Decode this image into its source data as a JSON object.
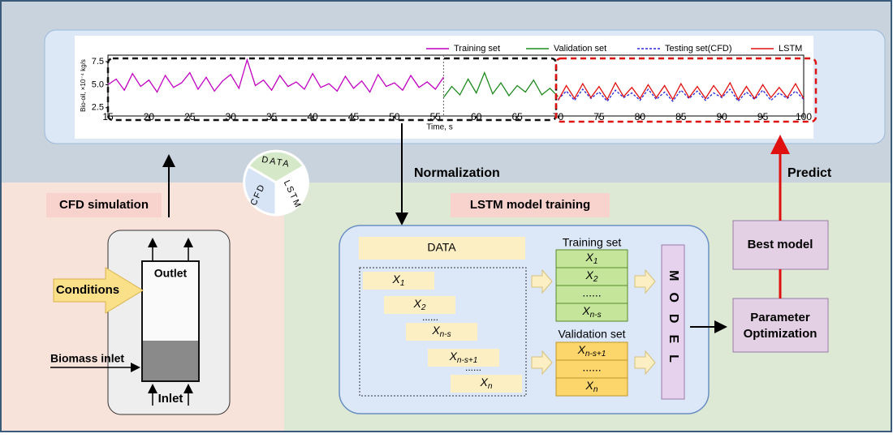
{
  "chart_data": {
    "type": "line",
    "xlabel": "Time, s",
    "ylabel": "Bio-oil, ×10⁻⁴ kg/s",
    "xlim": [
      15,
      100
    ],
    "xticks": [
      15,
      20,
      25,
      30,
      35,
      40,
      45,
      50,
      55,
      60,
      65,
      70,
      75,
      80,
      85,
      90,
      95,
      100
    ],
    "ylim": [
      1.6,
      8.2
    ],
    "yticks": [
      2.5,
      {
        "value": 5,
        "label": "5.0"
      },
      7.5
    ],
    "legend": "upper right",
    "series": [
      {
        "name": "Training set",
        "color": "#c000c0",
        "dashed": false,
        "x": [
          15,
          16,
          17,
          18,
          19,
          20,
          21,
          22,
          23,
          24,
          25,
          26,
          27,
          28,
          29,
          30,
          31,
          32,
          33,
          34,
          35,
          36,
          37,
          38,
          39,
          40,
          41,
          42,
          43,
          44,
          45,
          46,
          47,
          48,
          49,
          50,
          51,
          52,
          53,
          54,
          55,
          56
        ],
        "values": [
          5.0,
          5.6,
          4.4,
          6.2,
          4.8,
          5.5,
          4.2,
          6.0,
          4.7,
          5.2,
          6.3,
          4.5,
          5.8,
          4.3,
          5.4,
          6.1,
          4.6,
          7.7,
          4.9,
          5.5,
          4.4,
          6.0,
          4.8,
          5.3,
          4.5,
          6.2,
          4.7,
          5.1,
          4.3,
          5.9,
          4.6,
          5.4,
          4.2,
          6.1,
          4.8,
          5.2,
          4.4,
          6.0,
          4.7,
          5.3,
          4.5,
          5.8
        ]
      },
      {
        "name": "Validation set",
        "color": "#1e8a1e",
        "dashed": false,
        "x": [
          56,
          57,
          58,
          59,
          60,
          61,
          62,
          63,
          64,
          65,
          66,
          67,
          68,
          69,
          70
        ],
        "values": [
          3.6,
          4.8,
          3.9,
          5.6,
          4.1,
          6.3,
          4.0,
          5.2,
          3.8,
          4.9,
          4.2,
          5.5,
          3.9,
          4.6,
          3.7
        ]
      },
      {
        "name": "Testing set(CFD)",
        "color": "#2a2ad8",
        "dashed": true,
        "x": [
          70,
          71,
          72,
          73,
          74,
          75,
          76,
          77,
          78,
          79,
          80,
          81,
          82,
          83,
          84,
          85,
          86,
          87,
          88,
          89,
          90,
          91,
          92,
          93,
          94,
          95,
          96,
          97,
          98,
          99,
          100
        ],
        "values": [
          3.4,
          4.3,
          3.3,
          4.5,
          3.5,
          4.2,
          3.2,
          4.4,
          3.6,
          4.1,
          3.3,
          4.5,
          3.4,
          4.2,
          3.2,
          4.4,
          3.5,
          4.3,
          3.3,
          4.1,
          3.6,
          4.5,
          3.2,
          4.2,
          3.4,
          4.4,
          3.3,
          4.1,
          3.5,
          4.3,
          3.4
        ]
      },
      {
        "name": "LSTM",
        "color": "#e01010",
        "dashed": false,
        "x": [
          70,
          71,
          72,
          73,
          74,
          75,
          76,
          77,
          78,
          79,
          80,
          81,
          82,
          83,
          84,
          85,
          86,
          87,
          88,
          89,
          90,
          91,
          92,
          93,
          94,
          95,
          96,
          97,
          98,
          99,
          100
        ],
        "values": [
          3.3,
          4.9,
          3.5,
          5.1,
          3.6,
          4.8,
          3.4,
          5.2,
          3.7,
          4.7,
          3.5,
          5.0,
          3.6,
          4.9,
          3.4,
          5.1,
          3.6,
          4.8,
          3.5,
          4.9,
          3.7,
          5.2,
          3.4,
          4.8,
          3.5,
          5.0,
          3.6,
          4.7,
          3.6,
          5.1,
          3.5
        ]
      }
    ]
  },
  "labels": {
    "normalization": "Normalization",
    "predict": "Predict",
    "cfd_simulation": "CFD simulation",
    "lstm_training": "LSTM model training"
  },
  "wheel": [
    "DATA",
    "LSTM",
    "CFD"
  ],
  "reactor": {
    "conditions": "Conditions",
    "outlet": "Outlet",
    "biomass_inlet": "Biomass inlet",
    "inlet": "Inlet"
  },
  "training": {
    "data": "DATA",
    "windows": [
      {
        "base": "X",
        "sub": "1"
      },
      {
        "base": "X",
        "sub": "2"
      },
      "......",
      {
        "base": "X",
        "sub": "n-s"
      },
      {
        "base": "X",
        "sub": "n-s+1"
      },
      "......",
      {
        "base": "X",
        "sub": "n"
      }
    ],
    "training_set": {
      "title": "Training set",
      "rows": [
        {
          "base": "X",
          "sub": "1"
        },
        {
          "base": "X",
          "sub": "2"
        },
        "......",
        {
          "base": "X",
          "sub": "n-s"
        }
      ]
    },
    "validation_set": {
      "title": "Validation set",
      "rows": [
        {
          "base": "X",
          "sub": "n-s+1"
        },
        "......",
        {
          "base": "X",
          "sub": "n"
        }
      ]
    },
    "model": "MODEL"
  },
  "optimization": {
    "parameter": "Parameter Optimization",
    "best": "Best model"
  }
}
